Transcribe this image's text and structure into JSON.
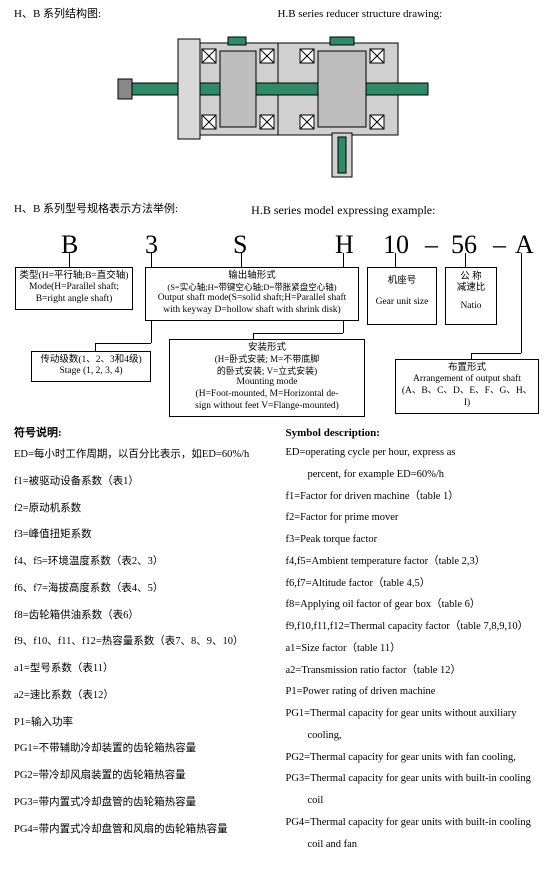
{
  "titles": {
    "struct_cn": "H、B 系列结构图:",
    "struct_en": "H.B series reducer structure drawing:",
    "model_cn": "H、B 系列型号规格表示方法举例:",
    "model_en": "H.B series model expressing example:"
  },
  "code_parts": {
    "B": "B",
    "three": "3",
    "S": "S",
    "H": "H",
    "ten": "10",
    "dash1": "–",
    "fiftysix": "56",
    "dash2": "–",
    "A": "A"
  },
  "boxes": {
    "type_cn": "类型(H=平行轴;B=直交轴)",
    "type_en1": "Mode(H=Parallel shaft;",
    "type_en2": "B=right angle shaft)",
    "stage_cn": "传动级数(1、2、3和4级)",
    "stage_en": "Stage (1, 2, 3, 4)",
    "output_cn": "输出轴形式",
    "output_sub_cn": "(S=实心轴;H=带键空心轴;D=带胀紧盘空心轴)",
    "output_en1": "Output shaft mode(S=solid shaft;H=Parallel shaft",
    "output_en2": "with keyway D=hollow shaft with shrink disk)",
    "mount_cn": "安装形式",
    "mount_sub_cn": "(H=卧式安装; M=不带底脚",
    "mount_sub_cn2": "的卧式安装; V=立式安装)",
    "mount_en1": "Mounting mode",
    "mount_en2": "(H=Foot-mounted, M=Horizontal de-",
    "mount_en3": "sign without feet  V=Flange-mounted)",
    "size_cn": "机座号",
    "size_en": "Gear unit size",
    "ratio_cn": "公  称",
    "ratio_cn2": "减速比",
    "ratio_en": "Natio",
    "arr_cn": "布置形式",
    "arr_en1": "Arrangement of output shaft",
    "arr_en2": "(A、B、C、D、E、F、G、H、I)"
  },
  "symbols_hdr_cn": "符号说明:",
  "symbols_hdr_en": "Symbol description:",
  "sym_cn": [
    "ED=每小时工作周期，以百分比表示，如ED=60%/h",
    "f1=被驱动设备系数（表1）",
    "f2=原动机系数",
    "f3=峰值扭矩系数",
    "f4、f5=环境温度系数（表2、3）",
    "f6、f7=海拔高度系数（表4、5）",
    "f8=齿轮箱供油系数（表6）",
    "f9、f10、f11、f12=热容量系数（表7、8、9、10）",
    "a1=型号系数（表11）",
    "a2=速比系数（表12）",
    "P1=输入功率",
    "PG1=不带辅助冷却装置的齿轮箱热容量",
    "PG2=带冷却风扇装置的齿轮箱热容量",
    "PG3=带内置式冷却盘管的齿轮箱热容量",
    "PG4=带内置式冷却盘管和风扇的齿轮箱热容量"
  ],
  "sym_en": [
    {
      "t": "ED=operating cycle per hour,  express as",
      "i": false
    },
    {
      "t": "percent, for example ED=60%/h",
      "i": true
    },
    {
      "t": "f1=Factor for driven machine（table 1）",
      "i": false
    },
    {
      "t": "f2=Factor for prime mover",
      "i": false
    },
    {
      "t": "f3=Peak torque factor",
      "i": false
    },
    {
      "t": "f4,f5=Ambient temperature factor（table 2,3）",
      "i": false
    },
    {
      "t": "f6,f7=Altitude factor（table 4,5）",
      "i": false
    },
    {
      "t": "f8=Applying oil factor of gear box（table 6）",
      "i": false
    },
    {
      "t": "f9,f10,f11,f12=Thermal capacity factor（table  7,8,9,10）",
      "i": false
    },
    {
      "t": "a1=Size factor（table 11）",
      "i": false
    },
    {
      "t": "a2=Transmission ratio factor（table 12）",
      "i": false
    },
    {
      "t": "P1=Power rating of driven machine",
      "i": false
    },
    {
      "t": "PG1=Thermal capacity for gear units without auxiliary",
      "i": false
    },
    {
      "t": "cooling,",
      "i": true
    },
    {
      "t": "PG2=Thermal capacity for gear units with fan cooling,",
      "i": false
    },
    {
      "t": "PG3=Thermal capacity for gear units with built-in cooling",
      "i": false
    },
    {
      "t": "coil",
      "i": true
    },
    {
      "t": "PG4=Thermal capacity for gear units with built-in cooling",
      "i": false
    },
    {
      "t": "coil and fan",
      "i": true
    }
  ],
  "colors": {
    "gearbody": "#c9c9c9",
    "shaft": "#2e8a67",
    "bearing": "#444444"
  }
}
